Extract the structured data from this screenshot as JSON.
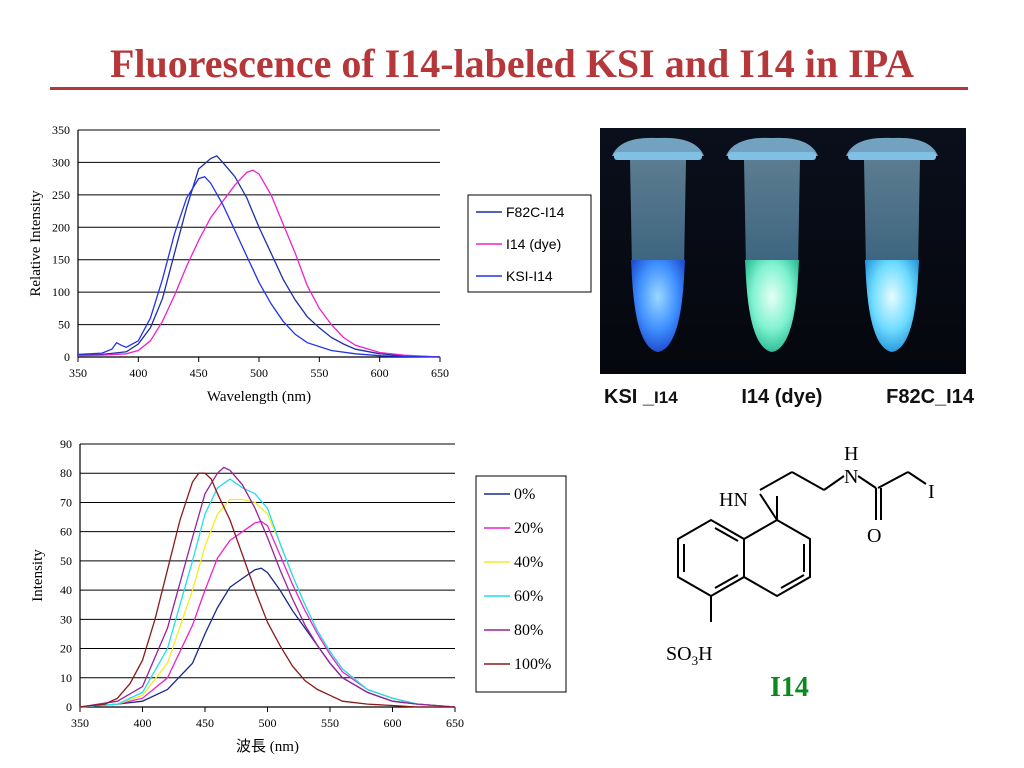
{
  "slide": {
    "title": "Fluorescence of I14-labeled KSI and I14 in IPA",
    "photo_labels": [
      "KSI _",
      "I14",
      "I14 (dye)",
      "F82C_I14"
    ],
    "compound_label": "I14",
    "structure_atoms": {
      "h": "H",
      "n": "N",
      "i": "I",
      "hn": "HN",
      "o": "O",
      "so3h_main": "SO",
      "so3h_sub": "3",
      "so3h_end": "H"
    }
  },
  "chart_data": [
    {
      "type": "line",
      "ylabel": "Relative Intensity",
      "xlabel": "Wavelength (nm)",
      "xlim": [
        350,
        650
      ],
      "ylim": [
        0,
        350
      ],
      "xticks": [
        350,
        400,
        450,
        500,
        550,
        600,
        650
      ],
      "yticks": [
        0,
        50,
        100,
        150,
        200,
        250,
        300,
        350
      ],
      "legend_position": "right",
      "grid": "horizontal",
      "series": [
        {
          "name": "F82C-I14",
          "color": "#1c2fa8",
          "x": [
            350,
            370,
            380,
            390,
            400,
            410,
            420,
            430,
            440,
            450,
            460,
            465,
            470,
            480,
            490,
            500,
            510,
            520,
            530,
            540,
            550,
            560,
            570,
            580,
            600,
            620,
            650
          ],
          "y": [
            3,
            4,
            6,
            8,
            20,
            45,
            90,
            160,
            230,
            290,
            306,
            310,
            300,
            278,
            245,
            200,
            160,
            120,
            88,
            62,
            45,
            30,
            20,
            12,
            5,
            2,
            0
          ]
        },
        {
          "name": "I14 (dye)",
          "color": "#ee22cc",
          "x": [
            350,
            370,
            390,
            400,
            410,
            420,
            430,
            440,
            450,
            460,
            470,
            480,
            490,
            495,
            500,
            510,
            520,
            530,
            540,
            550,
            560,
            570,
            580,
            600,
            620,
            650
          ],
          "y": [
            2,
            3,
            5,
            10,
            25,
            55,
            95,
            140,
            180,
            215,
            240,
            265,
            285,
            288,
            282,
            250,
            205,
            160,
            110,
            75,
            50,
            30,
            18,
            7,
            3,
            0
          ]
        },
        {
          "name": "KSI-I14",
          "color": "#2233ee",
          "x": [
            350,
            370,
            378,
            382,
            386,
            390,
            400,
            410,
            420,
            430,
            440,
            450,
            455,
            460,
            470,
            480,
            490,
            500,
            510,
            520,
            530,
            540,
            560,
            580,
            600,
            620,
            650
          ],
          "y": [
            4,
            6,
            12,
            22,
            18,
            15,
            25,
            60,
            120,
            190,
            245,
            275,
            278,
            268,
            235,
            195,
            155,
            115,
            82,
            55,
            35,
            22,
            10,
            5,
            2,
            1,
            0
          ]
        }
      ]
    },
    {
      "type": "line",
      "ylabel": "Intensity",
      "xlabel": "波長 (nm)",
      "xlim": [
        350,
        650
      ],
      "ylim": [
        0,
        90
      ],
      "xticks": [
        350,
        400,
        450,
        500,
        550,
        600,
        650
      ],
      "yticks": [
        0,
        10,
        20,
        30,
        40,
        50,
        60,
        70,
        80,
        90
      ],
      "legend_position": "right",
      "grid": "horizontal",
      "series": [
        {
          "name": "0%",
          "color": "#1a2a8c",
          "x": [
            350,
            380,
            400,
            420,
            440,
            450,
            460,
            470,
            480,
            490,
            495,
            500,
            510,
            520,
            530,
            540,
            550,
            560,
            580,
            600,
            620,
            650
          ],
          "y": [
            0,
            1,
            2,
            6,
            15,
            25,
            34,
            41,
            44,
            47,
            47.5,
            46,
            40,
            33,
            27,
            21,
            15,
            10,
            5,
            2,
            1,
            0
          ]
        },
        {
          "name": "20%",
          "color": "#ee22cc",
          "x": [
            350,
            380,
            400,
            420,
            440,
            450,
            460,
            470,
            480,
            490,
            495,
            500,
            510,
            520,
            530,
            540,
            550,
            560,
            580,
            600,
            620,
            650
          ],
          "y": [
            0,
            1,
            3,
            10,
            28,
            40,
            51,
            57,
            60,
            63,
            63.5,
            62,
            52,
            42,
            33,
            25,
            18,
            12,
            6,
            3,
            1,
            0
          ]
        },
        {
          "name": "40%",
          "color": "#f2ee22",
          "x": [
            350,
            380,
            400,
            420,
            440,
            450,
            460,
            470,
            480,
            490,
            500,
            510,
            520,
            530,
            540,
            550,
            560,
            580,
            600,
            620,
            650
          ],
          "y": [
            0,
            1,
            4,
            15,
            40,
            55,
            66,
            71,
            71,
            70,
            66,
            56,
            45,
            35,
            26,
            19,
            13,
            6,
            3,
            1,
            0
          ]
        },
        {
          "name": "60%",
          "color": "#22ddee",
          "x": [
            350,
            380,
            400,
            420,
            440,
            450,
            460,
            470,
            480,
            490,
            500,
            510,
            520,
            530,
            540,
            550,
            560,
            580,
            600,
            620,
            650
          ],
          "y": [
            0,
            1,
            5,
            20,
            50,
            66,
            75,
            78,
            75,
            73,
            68,
            56,
            45,
            35,
            26,
            19,
            13,
            6,
            3,
            1,
            0
          ]
        },
        {
          "name": "80%",
          "color": "#992299",
          "x": [
            350,
            380,
            400,
            420,
            440,
            450,
            460,
            465,
            470,
            480,
            490,
            500,
            510,
            520,
            530,
            540,
            550,
            560,
            580,
            600,
            620,
            650
          ],
          "y": [
            0,
            2,
            7,
            27,
            58,
            73,
            80,
            82,
            81,
            76,
            68,
            58,
            47,
            37,
            28,
            21,
            15,
            10,
            5,
            2,
            1,
            0
          ]
        },
        {
          "name": "100%",
          "color": "#8b1a1a",
          "x": [
            350,
            370,
            380,
            390,
            400,
            410,
            420,
            430,
            440,
            445,
            450,
            455,
            460,
            470,
            480,
            490,
            500,
            510,
            520,
            530,
            540,
            550,
            560,
            580,
            600,
            620,
            650
          ],
          "y": [
            0,
            1,
            3,
            8,
            16,
            30,
            47,
            64,
            77,
            80,
            80,
            78,
            73,
            64,
            52,
            40,
            29,
            21,
            14,
            9,
            6,
            4,
            2,
            1,
            0.5,
            0,
            0
          ]
        }
      ]
    }
  ]
}
